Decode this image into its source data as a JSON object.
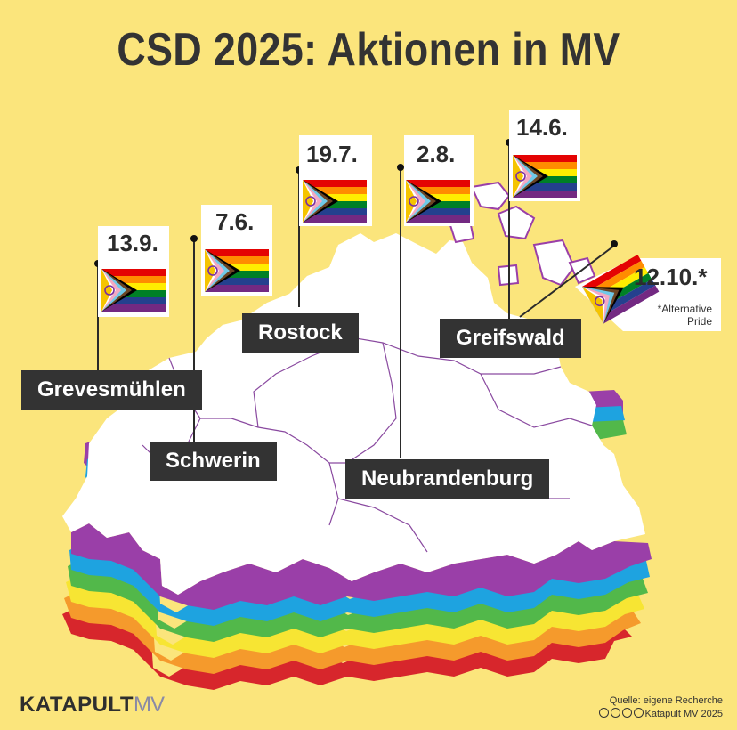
{
  "title": "CSD 2025: Aktionen in MV",
  "events": [
    {
      "city": "Grevesmühlen",
      "date": "13.9."
    },
    {
      "city": "Schwerin",
      "date": "7.6."
    },
    {
      "city": "Rostock",
      "date": "19.7."
    },
    {
      "city": "Neubrandenburg",
      "date": "2.8."
    },
    {
      "city": "Greifswald",
      "date": "14.6."
    },
    {
      "city": "",
      "date": "12.10.*",
      "note_line1": "*Alternative",
      "note_line2": "Pride"
    }
  ],
  "brand": {
    "name": "KATAPULT",
    "suffix": "MV"
  },
  "source": {
    "line1": "Quelle: eigene Recherche",
    "line2": "Katapult MV 2025"
  },
  "colors": {
    "background": "#fbe57c",
    "label": "#333333",
    "rainbow": [
      "#9a3fa8",
      "#1ea3e0",
      "#52b84a",
      "#f7e533",
      "#f59a2c",
      "#d7262c"
    ],
    "progress_chevrons": [
      "#ffffff",
      "#f4a9c2",
      "#70c9e8",
      "#6b4423",
      "#000000"
    ],
    "intersex": "#f5c400"
  }
}
